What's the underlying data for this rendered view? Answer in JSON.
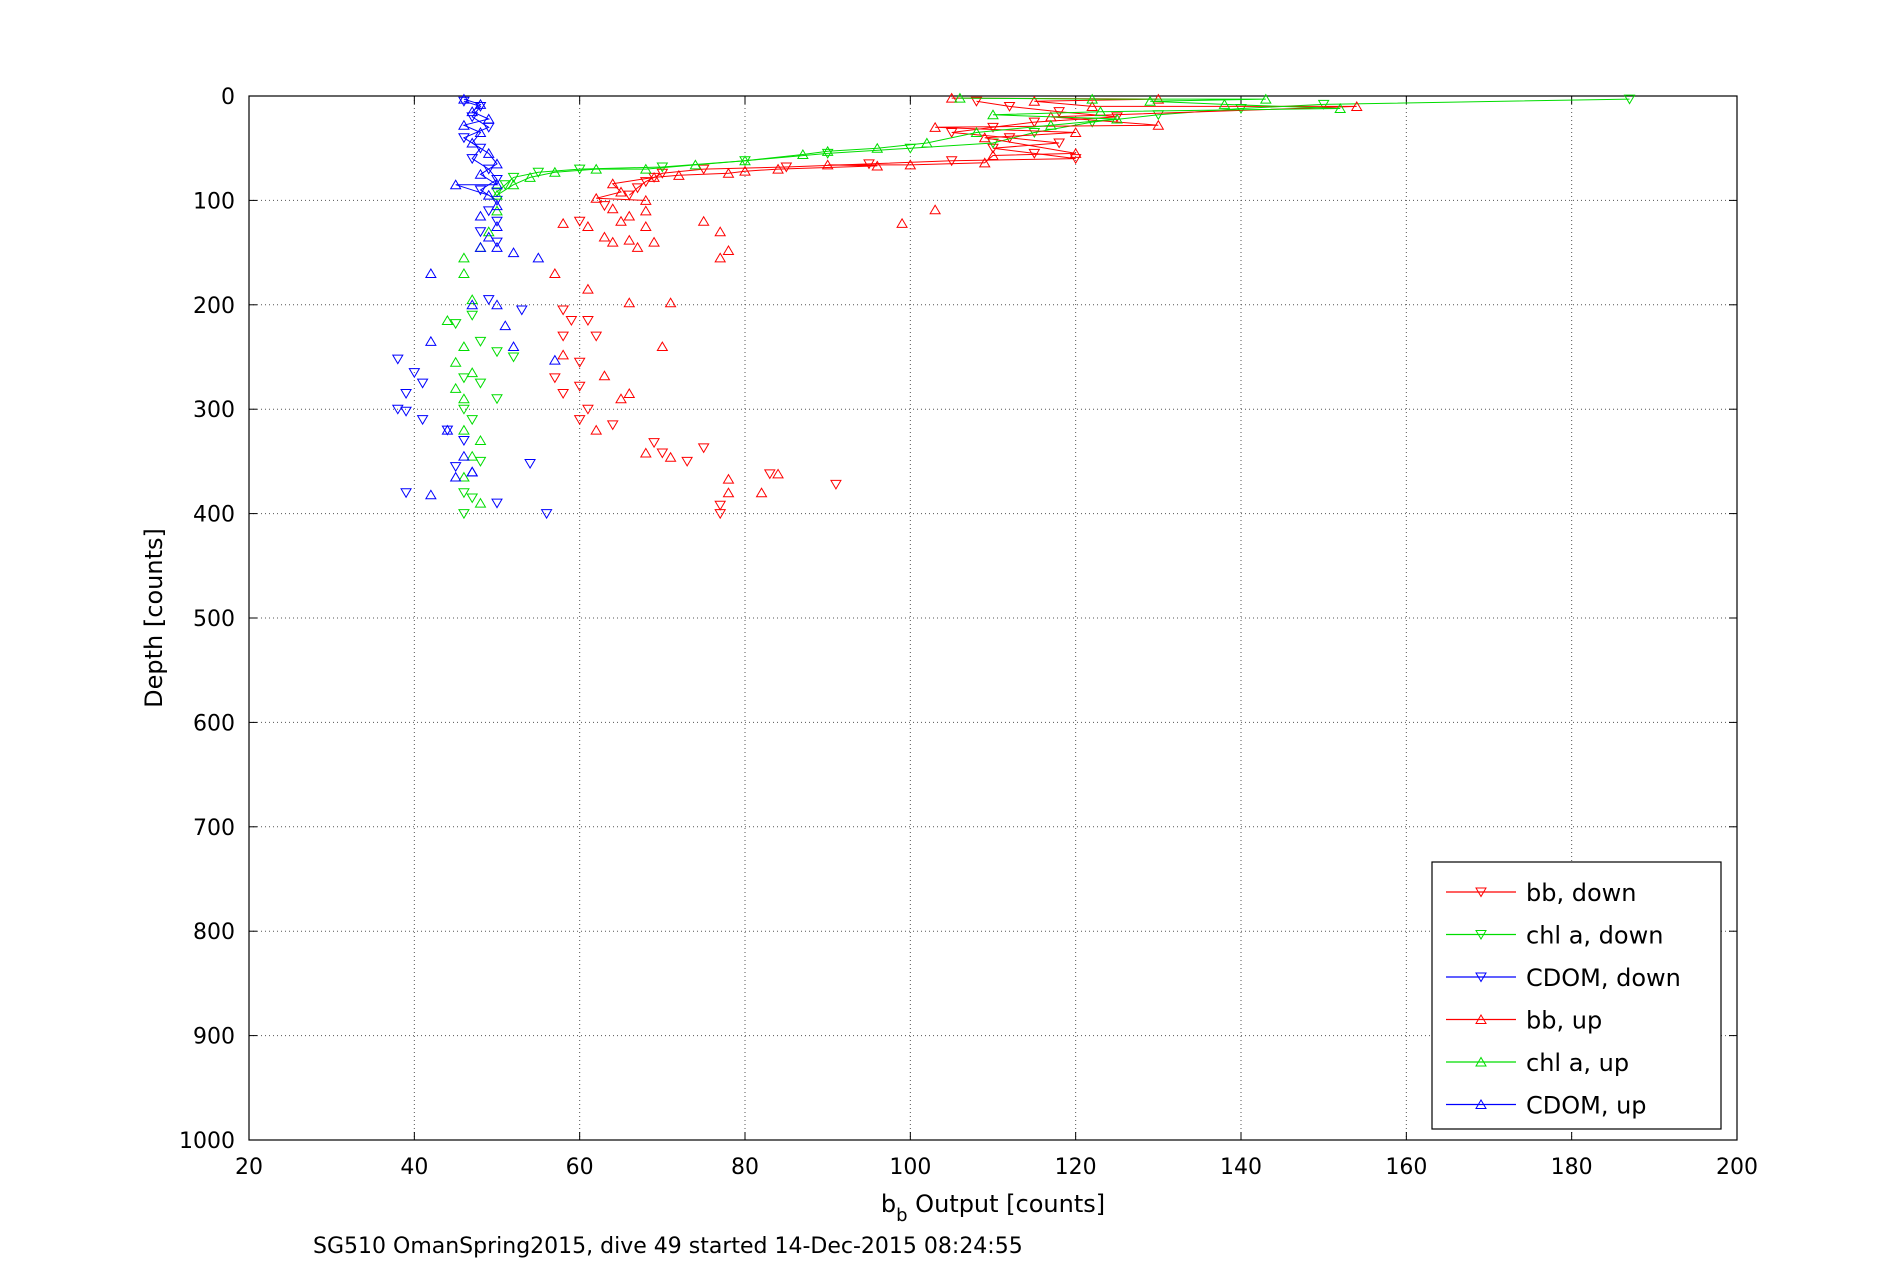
{
  "chart_data": {
    "type": "scatter",
    "xlabel_base": "b",
    "xlabel_sub": "b",
    "xlabel_rest": " Output [counts]",
    "ylabel": "Depth [counts]",
    "caption": "SG510 OmanSpring2015, dive 49 started 14-Dec-2015 08:24:55",
    "xlim": [
      20,
      200
    ],
    "ylim": [
      0,
      1000
    ],
    "y_reversed": true,
    "grid": true,
    "legend_position": "bottom-right",
    "xticks": [
      "20",
      "40",
      "60",
      "80",
      "100",
      "120",
      "140",
      "160",
      "180",
      "200"
    ],
    "yticks": [
      "0",
      "100",
      "200",
      "300",
      "400",
      "500",
      "600",
      "700",
      "800",
      "900",
      "1000"
    ],
    "series": [
      {
        "name": "bb, down",
        "color": "#ff0000",
        "marker": "triangle-down",
        "points": [
          [
            108,
            5
          ],
          [
            112,
            10
          ],
          [
            118,
            15
          ],
          [
            125,
            20
          ],
          [
            115,
            25
          ],
          [
            110,
            30
          ],
          [
            105,
            35
          ],
          [
            112,
            40
          ],
          [
            118,
            45
          ],
          [
            110,
            50
          ],
          [
            115,
            55
          ],
          [
            120,
            60
          ],
          [
            105,
            62
          ],
          [
            95,
            65
          ],
          [
            85,
            68
          ],
          [
            75,
            70
          ],
          [
            70,
            74
          ],
          [
            69,
            78
          ],
          [
            68,
            82
          ],
          [
            67,
            88
          ],
          [
            66,
            95
          ],
          [
            63,
            105
          ],
          [
            60,
            120
          ],
          [
            58,
            205
          ],
          [
            59,
            215
          ],
          [
            61,
            215
          ],
          [
            58,
            230
          ],
          [
            62,
            230
          ],
          [
            60,
            255
          ],
          [
            57,
            270
          ],
          [
            60,
            278
          ],
          [
            58,
            285
          ],
          [
            61,
            300
          ],
          [
            60,
            310
          ],
          [
            64,
            315
          ],
          [
            69,
            332
          ],
          [
            70,
            342
          ],
          [
            75,
            337
          ],
          [
            77,
            392
          ],
          [
            77,
            400
          ],
          [
            83,
            362
          ],
          [
            91,
            372
          ],
          [
            73,
            350
          ]
        ]
      },
      {
        "name": "chl a, down",
        "color": "#00dd00",
        "marker": "triangle-down",
        "points": [
          [
            187,
            3
          ],
          [
            150,
            8
          ],
          [
            140,
            12
          ],
          [
            130,
            18
          ],
          [
            122,
            25
          ],
          [
            115,
            35
          ],
          [
            110,
            45
          ],
          [
            100,
            50
          ],
          [
            90,
            55
          ],
          [
            80,
            62
          ],
          [
            70,
            68
          ],
          [
            60,
            70
          ],
          [
            55,
            73
          ],
          [
            52,
            78
          ],
          [
            51,
            85
          ],
          [
            50,
            92
          ],
          [
            45,
            218
          ],
          [
            47,
            210
          ],
          [
            48,
            235
          ],
          [
            50,
            245
          ],
          [
            52,
            250
          ],
          [
            46,
            270
          ],
          [
            48,
            275
          ],
          [
            50,
            290
          ],
          [
            46,
            300
          ],
          [
            47,
            310
          ],
          [
            48,
            350
          ],
          [
            46,
            380
          ],
          [
            47,
            385
          ],
          [
            46,
            400
          ]
        ]
      },
      {
        "name": "CDOM, down",
        "color": "#0000ff",
        "marker": "triangle-down",
        "points": [
          [
            46,
            5
          ],
          [
            48,
            10
          ],
          [
            47,
            20
          ],
          [
            49,
            30
          ],
          [
            46,
            40
          ],
          [
            48,
            50
          ],
          [
            47,
            60
          ],
          [
            49,
            70
          ],
          [
            50,
            80
          ],
          [
            48,
            90
          ],
          [
            50,
            100
          ],
          [
            49,
            110
          ],
          [
            50,
            120
          ],
          [
            48,
            130
          ],
          [
            50,
            140
          ],
          [
            49,
            195
          ],
          [
            53,
            205
          ],
          [
            38,
            252
          ],
          [
            40,
            265
          ],
          [
            41,
            275
          ],
          [
            39,
            285
          ],
          [
            38,
            300
          ],
          [
            39,
            302
          ],
          [
            41,
            310
          ],
          [
            44,
            320
          ],
          [
            46,
            330
          ],
          [
            39,
            380
          ],
          [
            45,
            355
          ],
          [
            50,
            390
          ],
          [
            56,
            400
          ],
          [
            54,
            352
          ]
        ]
      },
      {
        "name": "bb, up",
        "color": "#ff0000",
        "marker": "triangle-up",
        "points": [
          [
            105,
            2
          ],
          [
            115,
            5
          ],
          [
            130,
            3
          ],
          [
            122,
            10
          ],
          [
            154,
            10
          ],
          [
            117,
            20
          ],
          [
            130,
            28
          ],
          [
            103,
            30
          ],
          [
            120,
            35
          ],
          [
            109,
            40
          ],
          [
            120,
            55
          ],
          [
            110,
            57
          ],
          [
            109,
            64
          ],
          [
            100,
            66
          ],
          [
            96,
            67
          ],
          [
            90,
            66
          ],
          [
            84,
            70
          ],
          [
            80,
            72
          ],
          [
            78,
            74
          ],
          [
            72,
            76
          ],
          [
            69,
            78
          ],
          [
            64,
            84
          ],
          [
            65,
            92
          ],
          [
            62,
            98
          ],
          [
            68,
            100
          ],
          [
            64,
            108
          ],
          [
            68,
            110
          ],
          [
            66,
            115
          ],
          [
            65,
            120
          ],
          [
            68,
            125
          ],
          [
            61,
            125
          ],
          [
            63,
            135
          ],
          [
            66,
            138
          ],
          [
            69,
            140
          ],
          [
            58,
            122
          ],
          [
            64,
            140
          ],
          [
            67,
            145
          ],
          [
            57,
            170
          ],
          [
            61,
            185
          ],
          [
            66,
            198
          ],
          [
            71,
            198
          ],
          [
            99,
            122
          ],
          [
            103,
            109
          ],
          [
            75,
            120
          ],
          [
            77,
            130
          ],
          [
            78,
            148
          ],
          [
            77,
            155
          ],
          [
            70,
            240
          ],
          [
            58,
            248
          ],
          [
            63,
            268
          ],
          [
            66,
            285
          ],
          [
            65,
            290
          ],
          [
            62,
            320
          ],
          [
            68,
            342
          ],
          [
            71,
            346
          ],
          [
            78,
            367
          ],
          [
            82,
            380
          ],
          [
            78,
            380
          ],
          [
            84,
            362
          ]
        ]
      },
      {
        "name": "chl a, up",
        "color": "#00dd00",
        "marker": "triangle-up",
        "points": [
          [
            106,
            2
          ],
          [
            122,
            3
          ],
          [
            143,
            3
          ],
          [
            129,
            5
          ],
          [
            138,
            8
          ],
          [
            152,
            12
          ],
          [
            123,
            15
          ],
          [
            110,
            18
          ],
          [
            125,
            22
          ],
          [
            117,
            28
          ],
          [
            108,
            35
          ],
          [
            102,
            45
          ],
          [
            96,
            50
          ],
          [
            90,
            53
          ],
          [
            87,
            56
          ],
          [
            80,
            62
          ],
          [
            74,
            66
          ],
          [
            68,
            70
          ],
          [
            62,
            70
          ],
          [
            57,
            73
          ],
          [
            54,
            78
          ],
          [
            52,
            85
          ],
          [
            50,
            95
          ],
          [
            50,
            110
          ],
          [
            49,
            130
          ],
          [
            48,
            145
          ],
          [
            46,
            155
          ],
          [
            46,
            170
          ],
          [
            47,
            195
          ],
          [
            44,
            215
          ],
          [
            46,
            240
          ],
          [
            45,
            255
          ],
          [
            47,
            265
          ],
          [
            45,
            280
          ],
          [
            46,
            290
          ],
          [
            46,
            320
          ],
          [
            48,
            330
          ],
          [
            47,
            345
          ],
          [
            46,
            365
          ],
          [
            48,
            390
          ]
        ]
      },
      {
        "name": "CDOM, up",
        "color": "#0000ff",
        "marker": "triangle-up",
        "points": [
          [
            46,
            3
          ],
          [
            48,
            8
          ],
          [
            47,
            15
          ],
          [
            49,
            22
          ],
          [
            46,
            28
          ],
          [
            48,
            35
          ],
          [
            47,
            45
          ],
          [
            49,
            55
          ],
          [
            50,
            65
          ],
          [
            48,
            75
          ],
          [
            50,
            85
          ],
          [
            49,
            95
          ],
          [
            50,
            105
          ],
          [
            48,
            115
          ],
          [
            50,
            125
          ],
          [
            49,
            135
          ],
          [
            50,
            145
          ],
          [
            45,
            85
          ],
          [
            42,
            170
          ],
          [
            48,
            145
          ],
          [
            52,
            150
          ],
          [
            55,
            155
          ],
          [
            47,
            200
          ],
          [
            50,
            200
          ],
          [
            51,
            220
          ],
          [
            52,
            240
          ],
          [
            42,
            235
          ],
          [
            57,
            253
          ],
          [
            44,
            320
          ],
          [
            46,
            345
          ],
          [
            47,
            360
          ],
          [
            45,
            365
          ],
          [
            42,
            382
          ],
          [
            47,
            360
          ]
        ]
      }
    ]
  }
}
